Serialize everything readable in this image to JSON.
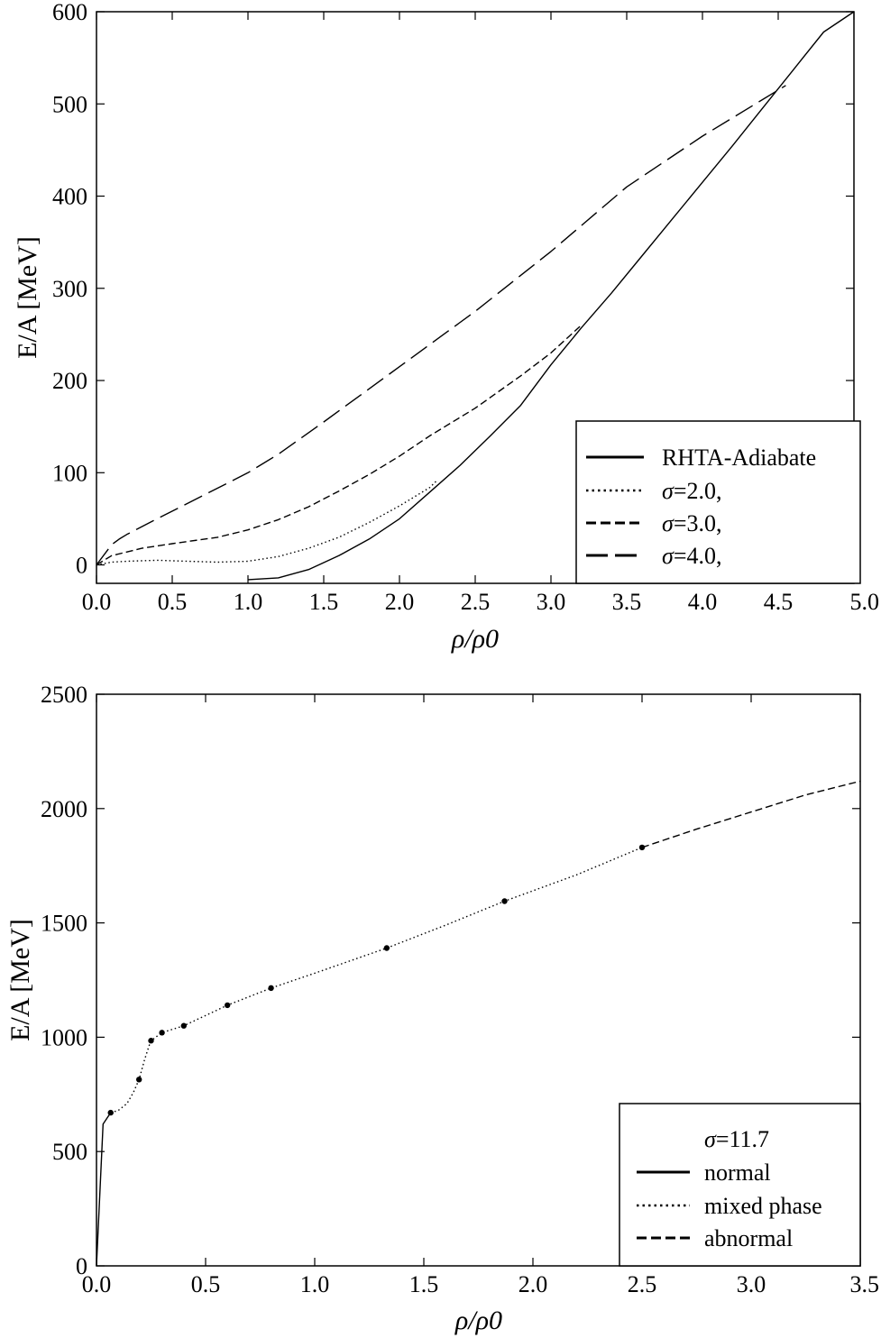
{
  "chart_data": [
    {
      "type": "line",
      "xlabel": "ρ/ρ0",
      "ylabel": "E/A [MeV]",
      "xlim": [
        0.0,
        5.0
      ],
      "ylim": [
        -20,
        600
      ],
      "xticks": [
        0.0,
        0.5,
        1.0,
        1.5,
        2.0,
        2.5,
        3.0,
        3.5,
        4.0,
        4.5,
        5.0
      ],
      "xtick_labels": [
        "0.0",
        "0.5",
        "1.0",
        "1.5",
        "2.0",
        "2.5",
        "3.0",
        "3.5",
        "4.0",
        "4.5",
        "5.0"
      ],
      "yticks": [
        0,
        100,
        200,
        300,
        400,
        500,
        600
      ],
      "ytick_labels": [
        "0",
        "100",
        "200",
        "300",
        "400",
        "500",
        "600"
      ],
      "legend_position": "bottom-right",
      "series": [
        {
          "name": "RHTA-Adiabate",
          "style": "solid",
          "x": [
            1.0,
            1.2,
            1.4,
            1.6,
            1.8,
            2.0,
            2.2,
            2.4,
            2.6,
            2.8,
            3.0,
            3.2,
            3.4,
            3.6,
            3.8,
            4.0,
            4.2,
            4.4,
            4.6,
            4.8,
            5.0
          ],
          "y": [
            -16,
            -14,
            -5,
            10,
            28,
            50,
            79,
            108,
            140,
            173,
            217,
            257,
            295,
            335,
            375,
            415,
            455,
            496,
            537,
            578,
            600
          ]
        },
        {
          "name_prefix": "σ",
          "name_value": "=2.0,",
          "style": "dotted",
          "x": [
            0.0,
            0.1,
            0.2,
            0.4,
            0.6,
            0.8,
            1.0,
            1.2,
            1.4,
            1.6,
            1.8,
            2.0,
            2.2,
            2.25
          ],
          "y": [
            0,
            3,
            4,
            5,
            4,
            3,
            4,
            9,
            18,
            30,
            46,
            64,
            84,
            92
          ]
        },
        {
          "name_prefix": "σ",
          "name_value": "=3.0,",
          "style": "dashed",
          "x": [
            0.0,
            0.1,
            0.3,
            0.5,
            0.8,
            1.0,
            1.2,
            1.4,
            1.6,
            1.8,
            2.0,
            2.2,
            2.5,
            2.8,
            3.0,
            3.2
          ],
          "y": [
            0,
            10,
            18,
            23,
            30,
            38,
            49,
            63,
            80,
            98,
            118,
            140,
            170,
            205,
            230,
            260
          ]
        },
        {
          "name_prefix": "σ",
          "name_value": "=4.0,",
          "style": "long-dashed",
          "x": [
            0.0,
            0.1,
            0.15,
            0.2,
            0.4,
            0.7,
            1.0,
            1.2,
            1.5,
            2.0,
            2.5,
            3.0,
            3.5,
            4.0,
            4.5,
            4.55
          ],
          "y": [
            0,
            22,
            28,
            33,
            50,
            75,
            100,
            120,
            155,
            215,
            275,
            340,
            410,
            465,
            515,
            520
          ]
        }
      ]
    },
    {
      "type": "line",
      "xlabel": "ρ/ρ0",
      "ylabel": "E/A [MeV]",
      "xlim": [
        0.0,
        3.5
      ],
      "ylim": [
        0,
        2500
      ],
      "xticks": [
        0.0,
        0.5,
        1.0,
        1.5,
        2.0,
        2.5,
        3.0,
        3.5
      ],
      "xtick_labels": [
        "0.0",
        "0.5",
        "1.0",
        "1.5",
        "2.0",
        "2.5",
        "3.0",
        "3.5"
      ],
      "yticks": [
        0,
        500,
        1000,
        1500,
        2000,
        2500
      ],
      "ytick_labels": [
        "0",
        "500",
        "1000",
        "1500",
        "2000",
        "2500"
      ],
      "legend_position": "bottom-right",
      "legend_title_prefix": "σ",
      "legend_title_value": "=11.7",
      "series": [
        {
          "name": "normal",
          "style": "solid",
          "x": [
            0.0,
            0.03,
            0.065
          ],
          "y": [
            0,
            620,
            670
          ]
        },
        {
          "name": "mixed phase",
          "style": "dotted",
          "x": [
            0.065,
            0.1,
            0.14,
            0.17,
            0.195,
            0.22,
            0.24,
            0.25,
            0.3,
            0.4,
            0.6,
            0.8,
            1.0,
            1.33,
            1.6,
            1.87,
            2.2,
            2.5
          ],
          "y": [
            670,
            680,
            710,
            760,
            815,
            900,
            960,
            985,
            1020,
            1050,
            1140,
            1215,
            1280,
            1390,
            1490,
            1595,
            1710,
            1830
          ]
        },
        {
          "name": "abnormal",
          "style": "dashed",
          "x": [
            2.5,
            2.75,
            3.0,
            3.25,
            3.5
          ],
          "y": [
            1830,
            1910,
            1985,
            2060,
            2120
          ]
        }
      ],
      "markers": {
        "x": [
          0.065,
          0.195,
          0.25,
          0.3,
          0.4,
          0.6,
          0.8,
          1.33,
          1.87,
          2.5
        ],
        "y": [
          670,
          815,
          985,
          1020,
          1050,
          1140,
          1215,
          1390,
          1595,
          1830
        ]
      }
    }
  ]
}
